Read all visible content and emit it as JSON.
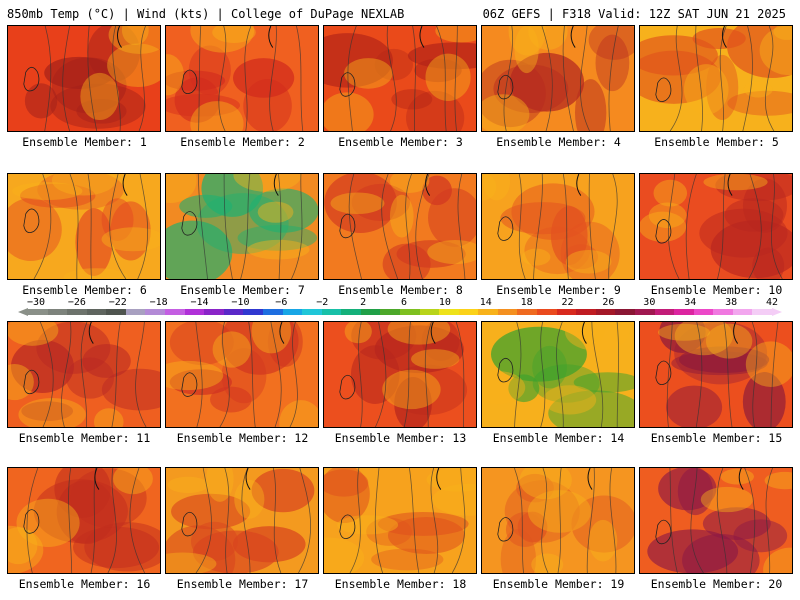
{
  "header": {
    "left": "850mb Temp (°C) | Wind (kts) | College of DuPage NEXLAB",
    "right": "06Z GEFS | F318 Valid: 12Z SAT JUN 21 2025"
  },
  "members": [
    {
      "label": "Ensemble Member: 1",
      "color": "#e8401a",
      "hot": "#a3201a"
    },
    {
      "label": "Ensemble Member: 2",
      "color": "#f06020",
      "hot": "#d22b1d"
    },
    {
      "label": "Ensemble Member: 3",
      "color": "#ea4a1a",
      "hot": "#b32417"
    },
    {
      "label": "Ensemble Member: 4",
      "color": "#f58a1f",
      "hot": "#b52a1f"
    },
    {
      "label": "Ensemble Member: 5",
      "color": "#f7b11c",
      "hot": "#e0521c"
    },
    {
      "label": "Ensemble Member: 6",
      "color": "#f7a81e",
      "hot": "#e34721"
    },
    {
      "label": "Ensemble Member: 7",
      "color": "#f28a22",
      "hot": "#20b070"
    },
    {
      "label": "Ensemble Member: 8",
      "color": "#f27a1f",
      "hot": "#d03520"
    },
    {
      "label": "Ensemble Member: 9",
      "color": "#f7a21e",
      "hot": "#e35120"
    },
    {
      "label": "Ensemble Member: 10",
      "color": "#ea4c20",
      "hot": "#b7261f"
    },
    {
      "label": "Ensemble Member: 11",
      "color": "#ef5f20",
      "hot": "#b82823"
    },
    {
      "label": "Ensemble Member: 12",
      "color": "#f2701f",
      "hot": "#cf3220"
    },
    {
      "label": "Ensemble Member: 13",
      "color": "#ec4f1e",
      "hot": "#b7261d"
    },
    {
      "label": "Ensemble Member: 14",
      "color": "#f7b01c",
      "hot": "#3aa22e"
    },
    {
      "label": "Ensemble Member: 15",
      "color": "#ec4f1e",
      "hot": "#8d1a3a"
    },
    {
      "label": "Ensemble Member: 16",
      "color": "#f0651f",
      "hot": "#c12d1e"
    },
    {
      "label": "Ensemble Member: 17",
      "color": "#f49a1f",
      "hot": "#d8451f"
    },
    {
      "label": "Ensemble Member: 18",
      "color": "#f7a21d",
      "hot": "#df4f1d"
    },
    {
      "label": "Ensemble Member: 19",
      "color": "#f59520",
      "hot": "#e05520"
    },
    {
      "label": "Ensemble Member: 20",
      "color": "#ef5d20",
      "hot": "#8a1746"
    }
  ],
  "colorbar": {
    "labels": [
      "−30",
      "−26",
      "−22",
      "−18",
      "−14",
      "−10",
      "−6",
      "−2",
      "2",
      "6",
      "10",
      "14",
      "18",
      "22",
      "26",
      "30",
      "34",
      "38",
      "42"
    ],
    "colors": [
      "#8a9088",
      "#7d837c",
      "#6d736c",
      "#5f655f",
      "#4f554f",
      "#a8a0c0",
      "#b38ad6",
      "#c45ee2",
      "#b030d8",
      "#8a24c8",
      "#5a28c8",
      "#3038d0",
      "#1e6ee0",
      "#18a6e6",
      "#20c6d8",
      "#18c0a8",
      "#14b07a",
      "#20a048",
      "#4ca82a",
      "#7ec020",
      "#b8d41a",
      "#eee21a",
      "#fbd219",
      "#f8b21a",
      "#f49020",
      "#ef6a20",
      "#ea4a1e",
      "#d82a1e",
      "#c01c22",
      "#a41828",
      "#8a1634",
      "#a01850",
      "#c21c78",
      "#dc24a0",
      "#ec48c8",
      "#f078e0",
      "#f2a6ee",
      "#f4cdf6"
    ]
  }
}
